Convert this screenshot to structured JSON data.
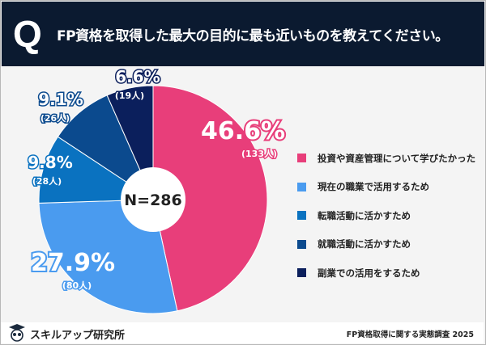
{
  "header": {
    "q_mark": "Q",
    "title": "FP資格を取得した最大の目的に最も近いものを教えてください。"
  },
  "chart_data": {
    "type": "pie",
    "donut": true,
    "center_label": "N=286",
    "categories": [
      "投資や資産管理について学びたかった",
      "現在の職業で活用するため",
      "転職活動に活かすため",
      "就職活動に活かすため",
      "副業での活用をするため"
    ],
    "values": [
      46.6,
      27.9,
      9.8,
      9.1,
      6.6
    ],
    "value_labels": [
      "46.6%",
      "27.9%",
      "9.8%",
      "9.1%",
      "6.6%"
    ],
    "counts": [
      "(133人)",
      "(80人)",
      "(28人)",
      "(26人)",
      "(19人)"
    ],
    "colors": [
      "#e83e7a",
      "#4a9bef",
      "#0a72c0",
      "#0b4a8e",
      "#0b1f5c"
    ],
    "legend_position": "right"
  },
  "footer": {
    "brand": "スキルアップ研究所",
    "source": "FP資格取得に関する実態調査 2025"
  }
}
